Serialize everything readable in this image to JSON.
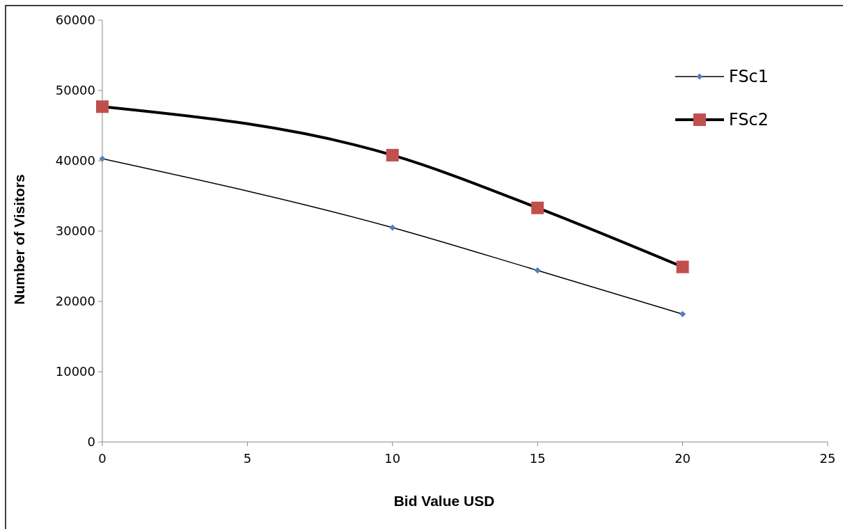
{
  "chart_data": {
    "type": "line",
    "xlabel": "Bid Value USD",
    "ylabel": "Number of Visitors",
    "xlim": [
      0,
      25
    ],
    "xticks": [
      0,
      5,
      10,
      15,
      20,
      25
    ],
    "ylim": [
      0,
      60000
    ],
    "yticks": [
      0,
      10000,
      20000,
      30000,
      40000,
      50000,
      60000
    ],
    "grid": false,
    "legend": "top right",
    "series": [
      {
        "name": "FSc1",
        "color": "#4f81bd",
        "marker": "diamond",
        "x": [
          0,
          10,
          15,
          20
        ],
        "values": [
          40300,
          30500,
          24400,
          18200
        ]
      },
      {
        "name": "FSc2",
        "color": "#c0504d",
        "marker": "square",
        "x": [
          0,
          10,
          15,
          20
        ],
        "values": [
          47700,
          40800,
          33300,
          24900
        ]
      }
    ]
  }
}
